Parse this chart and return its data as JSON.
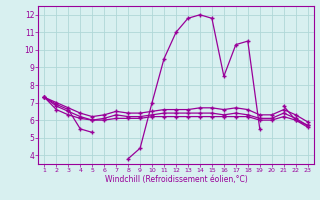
{
  "x": [
    1,
    2,
    3,
    4,
    5,
    6,
    7,
    8,
    9,
    10,
    11,
    12,
    13,
    14,
    15,
    16,
    17,
    18,
    19,
    20,
    21,
    22,
    23
  ],
  "line1": [
    7.3,
    6.9,
    6.6,
    5.5,
    5.3,
    null,
    null,
    3.8,
    4.4,
    7.0,
    9.5,
    11.0,
    11.8,
    12.0,
    11.8,
    8.5,
    10.3,
    10.5,
    5.5,
    null,
    6.8,
    6.0,
    5.7
  ],
  "line2": [
    7.3,
    7.0,
    6.7,
    6.4,
    6.2,
    6.3,
    6.5,
    6.4,
    6.4,
    6.5,
    6.6,
    6.6,
    6.6,
    6.7,
    6.7,
    6.6,
    6.7,
    6.6,
    6.3,
    6.3,
    6.6,
    6.3,
    5.9
  ],
  "line3": [
    7.3,
    6.8,
    6.5,
    6.2,
    6.0,
    6.1,
    6.3,
    6.2,
    6.2,
    6.3,
    6.4,
    6.4,
    6.4,
    6.4,
    6.4,
    6.3,
    6.4,
    6.3,
    6.1,
    6.1,
    6.4,
    6.1,
    5.7
  ],
  "line4": [
    7.3,
    6.6,
    6.3,
    6.1,
    6.0,
    6.0,
    6.1,
    6.1,
    6.1,
    6.2,
    6.2,
    6.2,
    6.2,
    6.2,
    6.2,
    6.2,
    6.2,
    6.2,
    6.0,
    6.0,
    6.2,
    6.0,
    5.6
  ],
  "color": "#990099",
  "bg_color": "#d8f0f0",
  "grid_color": "#b0d8d8",
  "xlabel": "Windchill (Refroidissement éolien,°C)",
  "ylim": [
    3.5,
    12.5
  ],
  "xlim": [
    0.5,
    23.5
  ],
  "yticks": [
    4,
    5,
    6,
    7,
    8,
    9,
    10,
    11,
    12
  ],
  "xticks": [
    1,
    2,
    3,
    4,
    5,
    6,
    7,
    8,
    9,
    10,
    11,
    12,
    13,
    14,
    15,
    16,
    17,
    18,
    19,
    20,
    21,
    22,
    23
  ]
}
